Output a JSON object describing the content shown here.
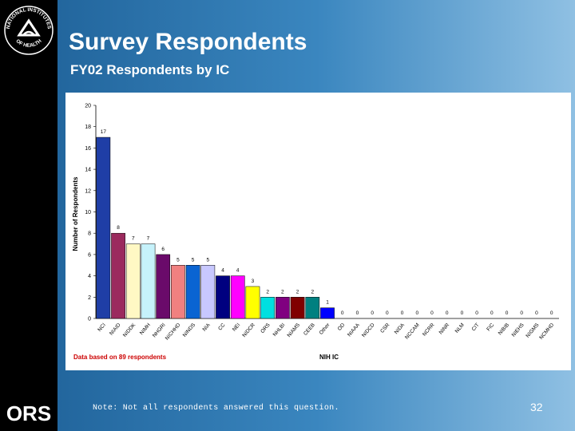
{
  "slide": {
    "title": "Survey Respondents",
    "subtitle": "FY02 Respondents by IC",
    "footnote": "Note: Not all respondents answered this question.",
    "page_number": "32",
    "logo_top_text": "NATIONAL INSTITUTES",
    "logo_bottom_text": "OF HEALTH",
    "logo_bottom_label": "ORS"
  },
  "colors": {
    "sidebar": "#000000",
    "title_text": "#ffffff",
    "note_red": "#cc0000"
  },
  "chart_data": {
    "type": "bar",
    "title": "",
    "xlabel": "NIH IC",
    "ylabel": "Number of Respondents",
    "ylim": [
      0,
      20
    ],
    "yticks": [
      0,
      2,
      4,
      6,
      8,
      10,
      12,
      14,
      16,
      18,
      20
    ],
    "annotation": "Data based on 89 respondents",
    "categories": [
      "NCI",
      "NIAID",
      "NIDDK",
      "NIMH",
      "NHGRI",
      "NICHHD",
      "NINDS",
      "NIA",
      "CC",
      "NEI",
      "NIDCR",
      "ORS",
      "NHLBI",
      "NIAMS",
      "CEEB",
      "Other",
      "OD",
      "NIAAA",
      "NIDCD",
      "CSR",
      "NIDA",
      "NCCAM",
      "NCRR",
      "NINR",
      "NLM",
      "CIT",
      "FIC",
      "NIBIB",
      "NIEHS",
      "NIGMS",
      "NCMHD"
    ],
    "values": [
      17,
      8,
      7,
      7,
      6,
      5,
      5,
      5,
      4,
      4,
      3,
      2,
      2,
      2,
      2,
      1,
      0,
      0,
      0,
      0,
      0,
      0,
      0,
      0,
      0,
      0,
      0,
      0,
      0,
      0,
      0
    ],
    "value_labels": [
      "17",
      "8",
      "7",
      "7",
      "6",
      "5",
      "5",
      "5",
      "4",
      "4",
      "3",
      "2",
      "2",
      "2",
      "2",
      "1",
      "0",
      "0",
      "0",
      "0",
      "0",
      "0",
      "0",
      "0",
      "0",
      "0",
      "0",
      "0",
      "0",
      "0",
      "0"
    ],
    "bar_colors": [
      "#1f3ea6",
      "#9b2a5e",
      "#fff8c4",
      "#c6f2fb",
      "#6a0a6a",
      "#f08080",
      "#0a64d2",
      "#c8c8ff",
      "#000080",
      "#ff00ff",
      "#ffff00",
      "#00e0e0",
      "#800080",
      "#800000",
      "#008080",
      "#0000ff",
      "#1f3ea6",
      "#9b2a5e",
      "#fff8c4",
      "#c6f2fb",
      "#6a0a6a",
      "#f08080",
      "#0a64d2",
      "#c8c8ff",
      "#000080",
      "#ff00ff",
      "#ffff00",
      "#00e0e0",
      "#800080",
      "#800000",
      "#008080"
    ]
  }
}
